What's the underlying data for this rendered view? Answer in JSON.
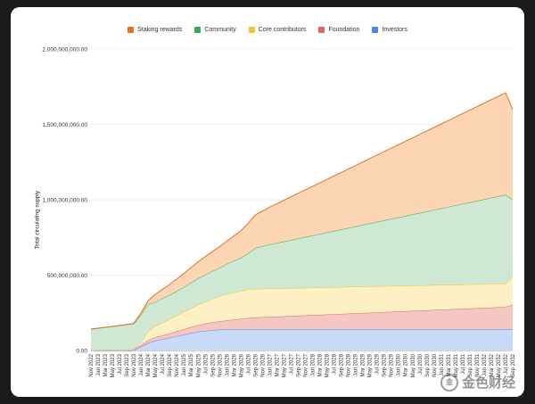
{
  "chart_data": {
    "type": "area",
    "stacked": true,
    "ylabel": "Total circulating supply",
    "xlabel": "",
    "ylim": [
      0,
      2000000000
    ],
    "y_ticks": [
      "0.00",
      "500,000,000.00",
      "1,000,000,000.00",
      "1,500,000,000.00",
      "2,000,000,000.00"
    ],
    "y_tick_values": [
      0,
      500000000,
      1000000000,
      1500000000,
      2000000000
    ],
    "legend_position": "top",
    "grid": true,
    "x": [
      "Nov 2022",
      "Jan 2023",
      "Mar 2023",
      "May 2023",
      "Jul 2023",
      "Sep 2023",
      "Nov 2023",
      "Jan 2024",
      "Mar 2024",
      "May 2024",
      "Jul 2024",
      "Sep 2024",
      "Nov 2024",
      "Jan 2025",
      "Mar 2025",
      "May 2025",
      "Jul 2025",
      "Sep 2025",
      "Nov 2025",
      "Jan 2026",
      "Mar 2026",
      "May 2026",
      "Jul 2026",
      "Sep 2026",
      "Nov 2026",
      "Jan 2027",
      "Mar 2027",
      "May 2027",
      "Jul 2027",
      "Sep 2027",
      "Nov 2027",
      "Jan 2028",
      "Mar 2028",
      "May 2028",
      "Jul 2028",
      "Sep 2028",
      "Nov 2028",
      "Jan 2029",
      "Mar 2029",
      "May 2029",
      "Jul 2029",
      "Sep 2029",
      "Nov 2029",
      "Jan 2030",
      "Mar 2030",
      "May 2030",
      "Jul 2030",
      "Sep 2030",
      "Nov 2030",
      "Jan 2031",
      "Mar 2031",
      "May 2031",
      "Jul 2031",
      "Sep 2031",
      "Nov 2031",
      "Jan 2032",
      "Mar 2032",
      "May 2032",
      "Jul 2032",
      "Sep 2032"
    ],
    "series": [
      {
        "name": "Investors",
        "color": "#4a86e8",
        "fill": "#c9daf8",
        "values": [
          0,
          0,
          0,
          0,
          0,
          0,
          0,
          25000000,
          50000000,
          65000000,
          75000000,
          85000000,
          95000000,
          105000000,
          115000000,
          125000000,
          130000000,
          135000000,
          138000000,
          140000000,
          140000000,
          140000000,
          140000000,
          140000000,
          140000000,
          140000000,
          140000000,
          140000000,
          140000000,
          140000000,
          140000000,
          140000000,
          140000000,
          140000000,
          140000000,
          140000000,
          140000000,
          140000000,
          140000000,
          140000000,
          140000000,
          140000000,
          140000000,
          140000000,
          140000000,
          140000000,
          140000000,
          140000000,
          140000000,
          140000000,
          140000000,
          140000000,
          140000000,
          140000000,
          140000000,
          140000000,
          140000000,
          140000000,
          140000000,
          140000000
        ]
      },
      {
        "name": "Foundation",
        "color": "#e06666",
        "fill": "#f4c7c3",
        "values": [
          2000000,
          3000000,
          4000000,
          5000000,
          6000000,
          7000000,
          8000000,
          12000000,
          18000000,
          22000000,
          25000000,
          28000000,
          32000000,
          36000000,
          40000000,
          44000000,
          48000000,
          52000000,
          56000000,
          60000000,
          65000000,
          70000000,
          75000000,
          80000000,
          81000000,
          83000000,
          85000000,
          87000000,
          89000000,
          91000000,
          93000000,
          95000000,
          97000000,
          99000000,
          101000000,
          103000000,
          105000000,
          107000000,
          109000000,
          111000000,
          113000000,
          115000000,
          117000000,
          119000000,
          121000000,
          123000000,
          125000000,
          127000000,
          129000000,
          131000000,
          133000000,
          135000000,
          137000000,
          139000000,
          141000000,
          143000000,
          145000000,
          147000000,
          149000000,
          165000000
        ]
      },
      {
        "name": "Core contributors",
        "color": "#f1c232",
        "fill": "#fdf0c4",
        "values": [
          0,
          0,
          0,
          0,
          0,
          0,
          0,
          20000000,
          60000000,
          75000000,
          85000000,
          95000000,
          105000000,
          115000000,
          125000000,
          135000000,
          145000000,
          155000000,
          165000000,
          175000000,
          180000000,
          185000000,
          190000000,
          190000000,
          189000000,
          188000000,
          187000000,
          186000000,
          185000000,
          184000000,
          183000000,
          182000000,
          181000000,
          180000000,
          179000000,
          178000000,
          177000000,
          176000000,
          175000000,
          174000000,
          173000000,
          172000000,
          171000000,
          170000000,
          169000000,
          168000000,
          167000000,
          166000000,
          165000000,
          164000000,
          163000000,
          162000000,
          161000000,
          160000000,
          159000000,
          158000000,
          157000000,
          156000000,
          155000000,
          190000000
        ]
      },
      {
        "name": "Community",
        "color": "#38a852",
        "fill": "#cfe8d3",
        "values": [
          140000000,
          145000000,
          150000000,
          155000000,
          160000000,
          165000000,
          170000000,
          180000000,
          180000000,
          160000000,
          160000000,
          160000000,
          162000000,
          165000000,
          170000000,
          175000000,
          180000000,
          185000000,
          190000000,
          200000000,
          210000000,
          220000000,
          240000000,
          270000000,
          282000000,
          292000000,
          301000000,
          310000000,
          319000000,
          328000000,
          337000000,
          346000000,
          355000000,
          364000000,
          373000000,
          382000000,
          391000000,
          400000000,
          409000000,
          418000000,
          427000000,
          436000000,
          445000000,
          454000000,
          463000000,
          472000000,
          481000000,
          490000000,
          499000000,
          508000000,
          517000000,
          526000000,
          535000000,
          544000000,
          553000000,
          562000000,
          571000000,
          580000000,
          589000000,
          505000000
        ]
      },
      {
        "name": "Staking rewards",
        "color": "#e8711c",
        "fill": "#fcd5b4",
        "values": [
          0,
          0,
          0,
          0,
          0,
          0,
          2000000,
          13000000,
          22000000,
          50000000,
          60000000,
          70000000,
          80000000,
          90000000,
          100000000,
          110000000,
          120000000,
          130000000,
          140000000,
          150000000,
          165000000,
          180000000,
          200000000,
          220000000,
          234000000,
          248000000,
          261000000,
          274000000,
          287000000,
          300000000,
          313000000,
          326000000,
          339000000,
          352000000,
          365000000,
          378000000,
          391000000,
          404000000,
          417000000,
          430000000,
          443000000,
          456000000,
          469000000,
          482000000,
          495000000,
          508000000,
          521000000,
          534000000,
          547000000,
          560000000,
          573000000,
          586000000,
          599000000,
          612000000,
          625000000,
          638000000,
          651000000,
          664000000,
          677000000,
          600000000
        ]
      }
    ],
    "legend_order": [
      "Staking rewards",
      "Community",
      "Core contributors",
      "Foundation",
      "Investors"
    ]
  },
  "watermark": {
    "text": "金色财经",
    "logo_glyph": "金"
  }
}
